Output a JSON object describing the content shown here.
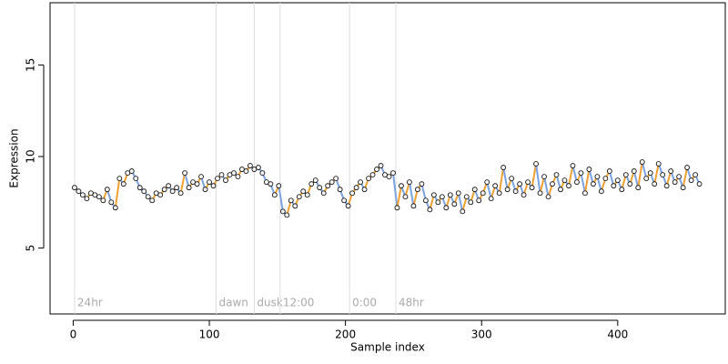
{
  "chart_data": {
    "type": "scatter",
    "x_label": "Sample index",
    "y_label": "Expression",
    "xlim": [
      -17,
      479
    ],
    "ylim": [
      1.4,
      18.4
    ],
    "xticks": [
      0,
      100,
      200,
      300,
      400
    ],
    "yticks": [
      5,
      10,
      15
    ],
    "up_color": "#f0a030",
    "down_color": "#7aa2e0",
    "point_color": "#000000",
    "point_fill": "#f4f4f4",
    "annotation_color": "#dddddd",
    "annotations": [
      {
        "x": 1,
        "label": "24hr"
      },
      {
        "x": 105,
        "label": "dawn"
      },
      {
        "x": 133,
        "label": "dusk"
      },
      {
        "x": 152,
        "label": "12:00"
      },
      {
        "x": 203,
        "label": "0:00"
      },
      {
        "x": 237,
        "label": "48hr"
      }
    ],
    "x": [
      1,
      4,
      7,
      10,
      13,
      16,
      19,
      22,
      25,
      28,
      31,
      34,
      37,
      40,
      43,
      46,
      49,
      52,
      55,
      58,
      61,
      64,
      67,
      70,
      73,
      76,
      79,
      82,
      85,
      88,
      91,
      94,
      97,
      100,
      103,
      106,
      109,
      112,
      115,
      118,
      121,
      124,
      127,
      130,
      133,
      136,
      139,
      142,
      145,
      148,
      151,
      154,
      157,
      160,
      163,
      166,
      169,
      172,
      175,
      178,
      181,
      184,
      187,
      190,
      193,
      196,
      199,
      202,
      205,
      208,
      211,
      214,
      217,
      220,
      223,
      226,
      229,
      232,
      235,
      238,
      241,
      244,
      247,
      250,
      253,
      256,
      259,
      262,
      265,
      268,
      271,
      274,
      277,
      280,
      283,
      286,
      289,
      292,
      295,
      298,
      301,
      304,
      307,
      310,
      313,
      316,
      319,
      322,
      325,
      328,
      331,
      334,
      337,
      340,
      343,
      346,
      349,
      352,
      355,
      358,
      361,
      364,
      367,
      370,
      373,
      376,
      379,
      382,
      385,
      388,
      391,
      394,
      397,
      400,
      403,
      406,
      409,
      412,
      415,
      418,
      421,
      424,
      427,
      430,
      433,
      436,
      439,
      442,
      445,
      448,
      451,
      454,
      457,
      460
    ],
    "values": [
      8.3,
      8.1,
      7.9,
      7.7,
      8.0,
      7.9,
      7.8,
      7.6,
      8.2,
      7.5,
      7.2,
      8.8,
      8.5,
      9.1,
      9.2,
      8.8,
      8.3,
      8.1,
      7.8,
      7.6,
      8.0,
      7.9,
      8.2,
      8.4,
      8.1,
      8.3,
      8.0,
      9.1,
      8.3,
      8.6,
      8.5,
      8.9,
      8.2,
      8.6,
      8.4,
      8.8,
      9.0,
      8.7,
      9.0,
      9.1,
      8.9,
      9.3,
      9.2,
      9.5,
      9.3,
      9.4,
      9.1,
      8.6,
      8.5,
      7.9,
      8.4,
      7.0,
      6.8,
      7.6,
      7.3,
      7.8,
      8.1,
      7.9,
      8.5,
      8.7,
      8.3,
      8.0,
      8.4,
      8.6,
      8.8,
      8.2,
      7.6,
      7.3,
      8.0,
      8.3,
      8.6,
      8.2,
      8.8,
      9.0,
      9.3,
      9.5,
      9.0,
      8.9,
      9.1,
      7.2,
      8.4,
      7.8,
      8.6,
      7.3,
      8.2,
      8.5,
      7.6,
      7.1,
      7.9,
      7.5,
      7.8,
      7.2,
      7.9,
      7.4,
      8.0,
      7.0,
      7.8,
      7.5,
      8.2,
      7.6,
      8.0,
      8.6,
      7.7,
      8.4,
      8.0,
      9.4,
      8.2,
      8.8,
      8.1,
      8.5,
      7.9,
      8.6,
      8.3,
      9.6,
      8.0,
      8.9,
      7.8,
      8.5,
      9.0,
      8.2,
      8.7,
      8.4,
      9.5,
      8.6,
      9.1,
      8.0,
      9.3,
      8.5,
      8.9,
      8.1,
      8.8,
      9.2,
      8.4,
      8.7,
      8.2,
      9.0,
      8.5,
      9.2,
      8.3,
      9.7,
      8.8,
      9.1,
      8.5,
      9.6,
      9.0,
      8.4,
      9.2,
      8.6,
      8.9,
      8.3,
      9.4,
      8.7,
      9.0,
      8.5
    ]
  }
}
